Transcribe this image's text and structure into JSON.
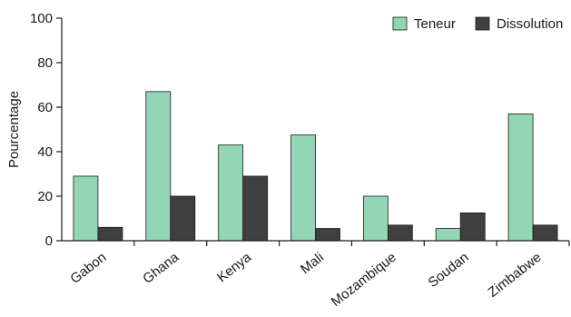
{
  "chart_data": {
    "type": "bar",
    "title": "",
    "xlabel": "",
    "ylabel": "Pourcentage",
    "ylim": [
      0,
      100
    ],
    "yticks": [
      0,
      20,
      40,
      60,
      80,
      100
    ],
    "grid": false,
    "legend_position": "top-right",
    "categories": [
      "Gabon",
      "Ghana",
      "Kenya",
      "Mali",
      "Mozambique",
      "Soudan",
      "Zimbabwe"
    ],
    "series": [
      {
        "name": "Teneur",
        "color": "#93d6b5",
        "values": [
          29,
          67,
          43,
          47.5,
          20,
          5.5,
          57
        ]
      },
      {
        "name": "Dissolution",
        "color": "#3f3f3f",
        "values": [
          6,
          20,
          29,
          5.5,
          7,
          12.5,
          7
        ]
      }
    ]
  }
}
